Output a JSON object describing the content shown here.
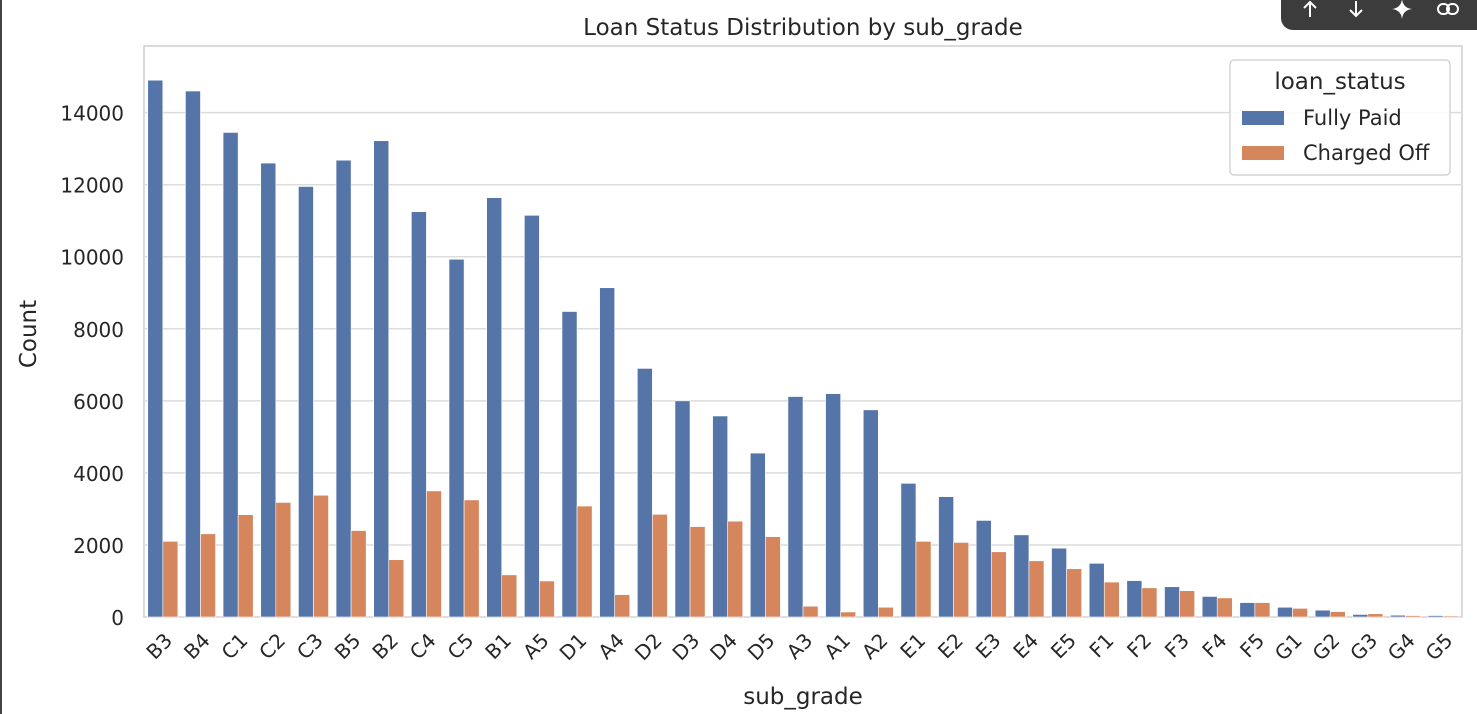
{
  "toolbar": {
    "icons": [
      "arrow-up-icon",
      "arrow-down-icon",
      "sparkle-icon",
      "link-icon"
    ]
  },
  "colors": {
    "fully_paid": "#5574a8",
    "charged_off": "#d5865d",
    "grid": "#dcdcdc",
    "text": "#262626"
  },
  "chart_data": {
    "type": "bar",
    "title": "Loan Status Distribution by sub_grade",
    "xlabel": "sub_grade",
    "ylabel": "Count",
    "ylim": [
      0,
      15850
    ],
    "yticks": [
      0,
      2000,
      4000,
      6000,
      8000,
      10000,
      12000,
      14000
    ],
    "legend": {
      "title": "loan_status",
      "position": "top-right"
    },
    "categories": [
      "B3",
      "B4",
      "C1",
      "C2",
      "C3",
      "B5",
      "B2",
      "C4",
      "C5",
      "B1",
      "A5",
      "D1",
      "A4",
      "D2",
      "D3",
      "D4",
      "D5",
      "A3",
      "A1",
      "A2",
      "E1",
      "E2",
      "E3",
      "E4",
      "E5",
      "F1",
      "F2",
      "F3",
      "F4",
      "F5",
      "G1",
      "G2",
      "G3",
      "G4",
      "G5"
    ],
    "series": [
      {
        "name": "Fully Paid",
        "values": [
          14900,
          14600,
          13450,
          12600,
          11950,
          12680,
          13220,
          11250,
          9930,
          11640,
          11150,
          8480,
          9140,
          6900,
          6000,
          5580,
          4550,
          6120,
          6200,
          5750,
          3710,
          3340,
          2680,
          2280,
          1910,
          1490,
          1010,
          840,
          570,
          400,
          270,
          190,
          70,
          50,
          40
        ]
      },
      {
        "name": "Charged Off",
        "values": [
          2100,
          2310,
          2840,
          3180,
          3380,
          2400,
          1590,
          3500,
          3250,
          1170,
          1000,
          3080,
          620,
          2850,
          2510,
          2660,
          2230,
          300,
          140,
          270,
          2100,
          2070,
          1810,
          1560,
          1340,
          970,
          810,
          730,
          530,
          400,
          240,
          150,
          90,
          40,
          30
        ]
      }
    ]
  }
}
